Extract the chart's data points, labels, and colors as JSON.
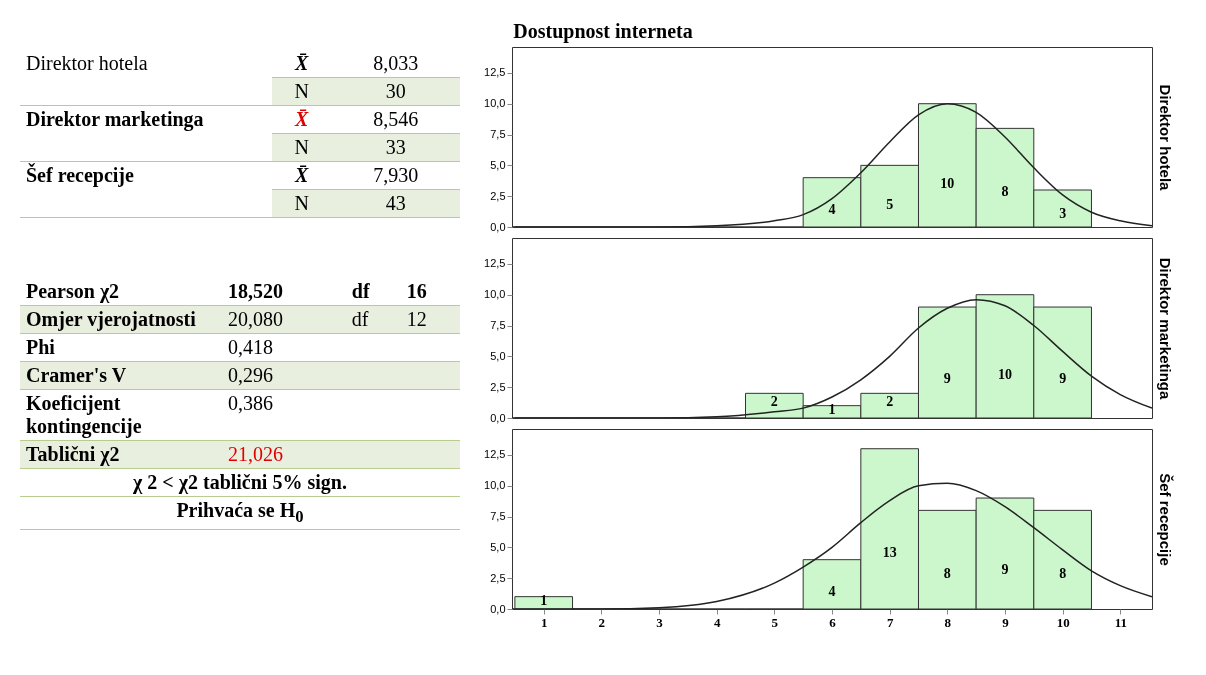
{
  "chart_data": [
    {
      "type": "other",
      "title": "Dostupnost interneta",
      "annotations": [
        "Direktor hotela",
        "X̄",
        "8,033",
        "N",
        "30",
        "Direktor marketinga",
        "X̄",
        "8,546",
        "N",
        "33",
        "Šef recepcije",
        "X̄",
        "7,930",
        "N",
        "43",
        "Pearson χ2",
        "18,520",
        "df",
        "16",
        "Omjer vjerojatnosti",
        "20,080",
        "df",
        "12",
        "Phi",
        "0,418",
        "Cramer's V",
        "0,296",
        "Koeficijent kontingencije",
        "0,386",
        "Tablični χ2",
        "21,026",
        "χ 2 < χ2 tablični 5% sign.",
        "Prihvaća se H$_{0}$"
      ]
    },
    {
      "type": "histogram",
      "y2label": "Direktor hotela",
      "color": "#ccf7cc",
      "bins": [
        0.5,
        1.5,
        2.5,
        3.5,
        4.5,
        5.5,
        6.5,
        7.5,
        8.5,
        9.5,
        10.5
      ],
      "values": [
        0,
        0,
        0,
        0,
        0,
        4,
        5,
        10,
        8,
        3
      ],
      "value_labels": [
        null,
        null,
        null,
        null,
        null,
        "4",
        "5",
        "10",
        "8",
        "3"
      ],
      "xlim": [
        0.45,
        11.55
      ],
      "xticks": [
        1,
        2,
        3,
        4,
        5,
        6,
        7,
        8,
        9,
        10,
        11
      ],
      "ylim": [
        0,
        14.6
      ],
      "yticks": [
        {
          "value": 0,
          "label": "0,0"
        },
        {
          "value": 2.5,
          "label": "2,5"
        },
        {
          "value": 5,
          "label": "5,0"
        },
        {
          "value": 7.5,
          "label": "7,5"
        },
        {
          "value": 10,
          "label": "10,0"
        },
        {
          "value": 12.5,
          "label": "12,5"
        }
      ],
      "tick_labels": "y",
      "series": [
        {
          "type": "line",
          "color": "#222222",
          "x": [
            0.45,
            3,
            4,
            5,
            5.5,
            6,
            6.5,
            7,
            7.5,
            8,
            8.5,
            9,
            9.5,
            10,
            10.5,
            11,
            11.55
          ],
          "values": [
            0,
            0,
            0.1,
            0.5,
            1.0,
            2.3,
            4.4,
            6.9,
            9.1,
            10.0,
            9.3,
            7.3,
            4.8,
            2.6,
            1.2,
            0.5,
            0.1
          ]
        }
      ]
    },
    {
      "type": "histogram",
      "y2label": "Direktor marketinga",
      "color": "#ccf7cc",
      "bins": [
        0.5,
        1.5,
        2.5,
        3.5,
        4.5,
        5.5,
        6.5,
        7.5,
        8.5,
        9.5,
        10.5
      ],
      "values": [
        0,
        0,
        0,
        0,
        2,
        1,
        2,
        9,
        10,
        9
      ],
      "value_labels": [
        null,
        null,
        null,
        null,
        "2",
        "1",
        "2",
        "9",
        "10",
        "9"
      ],
      "xlim": [
        0.45,
        11.55
      ],
      "xticks": [
        1,
        2,
        3,
        4,
        5,
        6,
        7,
        8,
        9,
        10,
        11
      ],
      "ylim": [
        0,
        14.6
      ],
      "yticks": [
        {
          "value": 0,
          "label": "0,0"
        },
        {
          "value": 2.5,
          "label": "2,5"
        },
        {
          "value": 5,
          "label": "5,0"
        },
        {
          "value": 7.5,
          "label": "7,5"
        },
        {
          "value": 10,
          "label": "10,0"
        },
        {
          "value": 12.5,
          "label": "12,5"
        }
      ],
      "tick_labels": "y",
      "series": [
        {
          "type": "line",
          "color": "#222222",
          "x": [
            0.45,
            3,
            4,
            5,
            5.5,
            6,
            6.5,
            7,
            7.5,
            8,
            8.5,
            9,
            9.5,
            10,
            10.5,
            11,
            11.55
          ],
          "values": [
            0,
            0,
            0.1,
            0.5,
            0.8,
            1.7,
            3.1,
            5.0,
            7.3,
            8.9,
            9.6,
            9.1,
            7.5,
            5.4,
            3.4,
            1.9,
            0.8
          ]
        }
      ]
    },
    {
      "type": "histogram",
      "y2label": "Šef recepcije",
      "color": "#ccf7cc",
      "bins": [
        0.5,
        1.5,
        2.5,
        3.5,
        4.5,
        5.5,
        6.5,
        7.5,
        8.5,
        9.5,
        10.5
      ],
      "values": [
        1,
        0,
        0,
        0,
        0,
        4,
        13,
        8,
        9,
        8
      ],
      "value_labels": [
        "1",
        null,
        null,
        null,
        null,
        "4",
        "13",
        "8",
        "9",
        "8"
      ],
      "xlim": [
        0.45,
        11.55
      ],
      "xticks": [
        1,
        2,
        3,
        4,
        5,
        6,
        7,
        8,
        9,
        10,
        11
      ],
      "ylim": [
        0,
        14.6
      ],
      "yticks": [
        {
          "value": 0,
          "label": "0,0"
        },
        {
          "value": 2.5,
          "label": "2,5"
        },
        {
          "value": 5,
          "label": "5,0"
        },
        {
          "value": 7.5,
          "label": "7,5"
        },
        {
          "value": 10,
          "label": "10,0"
        },
        {
          "value": 12.5,
          "label": "12,5"
        }
      ],
      "series": [
        {
          "type": "line",
          "color": "#222222",
          "x": [
            0.45,
            2,
            3,
            4,
            5,
            5.5,
            6,
            6.5,
            7,
            7.5,
            8,
            8.5,
            9,
            9.5,
            10,
            10.5,
            11,
            11.55
          ],
          "values": [
            0,
            0,
            0.1,
            0.6,
            2.1,
            3.4,
            5.0,
            7.0,
            8.8,
            10.0,
            10.2,
            9.6,
            8.3,
            6.6,
            4.8,
            3.1,
            1.9,
            1.0
          ]
        }
      ]
    }
  ]
}
